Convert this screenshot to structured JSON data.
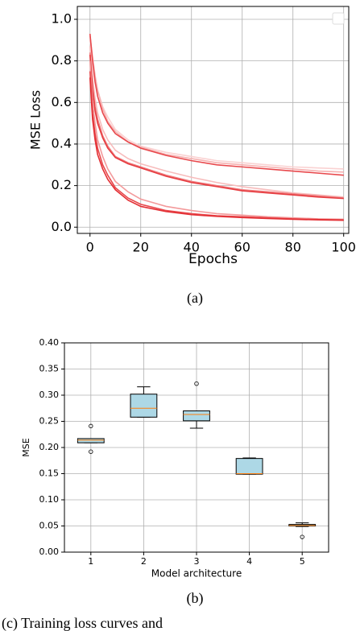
{
  "chart_data": [
    {
      "type": "line",
      "ylabel": "MSE Loss",
      "xlabel": "Epochs",
      "x": [
        0,
        1,
        2,
        3,
        5,
        7,
        10,
        15,
        20,
        30,
        40,
        50,
        60,
        70,
        80,
        90,
        100
      ],
      "xlim": [
        -5,
        102
      ],
      "ylim": [
        -0.03,
        1.062
      ],
      "xticks": [
        0,
        20,
        40,
        60,
        80,
        100
      ],
      "yticks": [
        {
          "value": 0,
          "label": "0.0"
        },
        {
          "value": 0.2,
          "label": "0.2"
        },
        {
          "value": 0.4,
          "label": "0.4"
        },
        {
          "value": 0.6,
          "label": "0.6"
        },
        {
          "value": 0.8,
          "label": "0.8"
        },
        {
          "value": 1.0,
          "label": "1.0"
        }
      ],
      "grid": true,
      "legend": "upper right",
      "series": [
        {
          "color": "#fad2d2",
          "values": [
            0.9,
            0.8,
            0.72,
            0.66,
            0.58,
            0.53,
            0.47,
            0.42,
            0.39,
            0.36,
            0.34,
            0.32,
            0.31,
            0.3,
            0.29,
            0.285,
            0.28
          ]
        },
        {
          "color": "#f6b0b0",
          "values": [
            0.92,
            0.82,
            0.73,
            0.66,
            0.57,
            0.51,
            0.46,
            0.41,
            0.385,
            0.35,
            0.33,
            0.31,
            0.3,
            0.29,
            0.28,
            0.27,
            0.265
          ]
        },
        {
          "color": "#e8484c",
          "values": [
            0.93,
            0.8,
            0.7,
            0.63,
            0.55,
            0.5,
            0.45,
            0.41,
            0.38,
            0.345,
            0.32,
            0.3,
            0.29,
            0.28,
            0.27,
            0.26,
            0.25
          ]
        },
        {
          "color": "#f7bcbc",
          "values": [
            0.87,
            0.72,
            0.62,
            0.55,
            0.47,
            0.42,
            0.37,
            0.33,
            0.305,
            0.27,
            0.24,
            0.215,
            0.195,
            0.18,
            0.165,
            0.155,
            0.145
          ]
        },
        {
          "color": "#ef7a7c",
          "values": [
            0.84,
            0.68,
            0.58,
            0.52,
            0.44,
            0.39,
            0.34,
            0.31,
            0.29,
            0.25,
            0.22,
            0.2,
            0.18,
            0.17,
            0.16,
            0.15,
            0.14
          ]
        },
        {
          "color": "#e63c40",
          "values": [
            0.83,
            0.66,
            0.56,
            0.5,
            0.43,
            0.38,
            0.335,
            0.305,
            0.285,
            0.245,
            0.215,
            0.195,
            0.175,
            0.165,
            0.155,
            0.145,
            0.138
          ]
        },
        {
          "color": "#f39a9b",
          "values": [
            0.8,
            0.6,
            0.5,
            0.42,
            0.34,
            0.28,
            0.22,
            0.17,
            0.135,
            0.1,
            0.08,
            0.065,
            0.058,
            0.05,
            0.045,
            0.04,
            0.038
          ]
        },
        {
          "color": "#e8484c",
          "values": [
            0.75,
            0.55,
            0.45,
            0.38,
            0.3,
            0.25,
            0.19,
            0.14,
            0.11,
            0.08,
            0.065,
            0.055,
            0.05,
            0.045,
            0.04,
            0.037,
            0.035
          ]
        },
        {
          "color": "#e32f34",
          "values": [
            0.72,
            0.52,
            0.42,
            0.35,
            0.28,
            0.23,
            0.18,
            0.13,
            0.1,
            0.075,
            0.06,
            0.052,
            0.046,
            0.042,
            0.038,
            0.035,
            0.033
          ]
        }
      ]
    },
    {
      "type": "box",
      "ylabel": "MSE",
      "xlabel": "Model architecture",
      "categories": [
        "1",
        "2",
        "3",
        "4",
        "5"
      ],
      "ylim": [
        0,
        0.4
      ],
      "yticks": [
        {
          "value": 0,
          "label": "0.00"
        },
        {
          "value": 0.05,
          "label": "0.05"
        },
        {
          "value": 0.1,
          "label": "0.10"
        },
        {
          "value": 0.15,
          "label": "0.15"
        },
        {
          "value": 0.2,
          "label": "0.20"
        },
        {
          "value": 0.25,
          "label": "0.25"
        },
        {
          "value": 0.3,
          "label": "0.30"
        },
        {
          "value": 0.35,
          "label": "0.35"
        },
        {
          "value": 0.4,
          "label": "0.40"
        }
      ],
      "grid": true,
      "color": "#add8e6",
      "median_color": "#ff7f0e",
      "boxes": [
        {
          "whislo": 0.209,
          "q1": 0.209,
          "med": 0.214,
          "q3": 0.217,
          "whishi": 0.217,
          "fliers": [
            0.241,
            0.192
          ]
        },
        {
          "whislo": 0.258,
          "q1": 0.258,
          "med": 0.275,
          "q3": 0.302,
          "whishi": 0.316,
          "fliers": []
        },
        {
          "whislo": 0.237,
          "q1": 0.251,
          "med": 0.263,
          "q3": 0.27,
          "whishi": 0.27,
          "fliers": [
            0.322
          ]
        },
        {
          "whislo": 0.149,
          "q1": 0.149,
          "med": 0.15,
          "q3": 0.179,
          "whishi": 0.18,
          "fliers": []
        },
        {
          "whislo": 0.049,
          "q1": 0.05,
          "med": 0.051,
          "q3": 0.053,
          "whishi": 0.056,
          "fliers": [
            0.029
          ]
        }
      ]
    }
  ],
  "captions": [
    "(a)",
    "(b)",
    "(c) Training loss curves and"
  ]
}
